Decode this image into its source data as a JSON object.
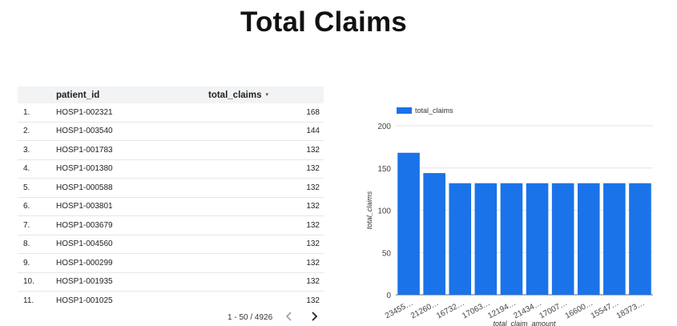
{
  "page": {
    "title": "Total Claims"
  },
  "table": {
    "columns": {
      "index": "",
      "patient_id": "patient_id",
      "total_claims": "total_claims"
    },
    "sort_indicator": "▾",
    "rows": [
      {
        "idx": "1.",
        "patient_id": "HOSP1-002321",
        "total_claims": "168"
      },
      {
        "idx": "2.",
        "patient_id": "HOSP1-003540",
        "total_claims": "144"
      },
      {
        "idx": "3.",
        "patient_id": "HOSP1-001783",
        "total_claims": "132"
      },
      {
        "idx": "4.",
        "patient_id": "HOSP1-001380",
        "total_claims": "132"
      },
      {
        "idx": "5.",
        "patient_id": "HOSP1-000588",
        "total_claims": "132"
      },
      {
        "idx": "6.",
        "patient_id": "HOSP1-003801",
        "total_claims": "132"
      },
      {
        "idx": "7.",
        "patient_id": "HOSP1-003679",
        "total_claims": "132"
      },
      {
        "idx": "8.",
        "patient_id": "HOSP1-004560",
        "total_claims": "132"
      },
      {
        "idx": "9.",
        "patient_id": "HOSP1-000299",
        "total_claims": "132"
      },
      {
        "idx": "10.",
        "patient_id": "HOSP1-001935",
        "total_claims": "132"
      },
      {
        "idx": "11.",
        "patient_id": "HOSP1-001025",
        "total_claims": "132"
      }
    ],
    "pagination": {
      "label": "1 - 50 / 4926",
      "prev_icon": "chevron-left-icon",
      "next_icon": "chevron-right-icon"
    }
  },
  "chart_data": {
    "type": "bar",
    "categories": [
      "23455…",
      "21260…",
      "16732…",
      "17063…",
      "12194…",
      "21434…",
      "17007…",
      "16600…",
      "15547…",
      "18373…"
    ],
    "series": [
      {
        "name": "total_claims",
        "values": [
          168,
          144,
          132,
          132,
          132,
          132,
          132,
          132,
          132,
          132
        ]
      }
    ],
    "title": "",
    "xlabel": "total_claim_amount",
    "ylabel": "total_claims",
    "ylim": [
      0,
      200
    ],
    "yticks": [
      0,
      50,
      100,
      150,
      200
    ],
    "grid": true,
    "legend_position": "top-left",
    "bar_color": "#1a73e8"
  }
}
